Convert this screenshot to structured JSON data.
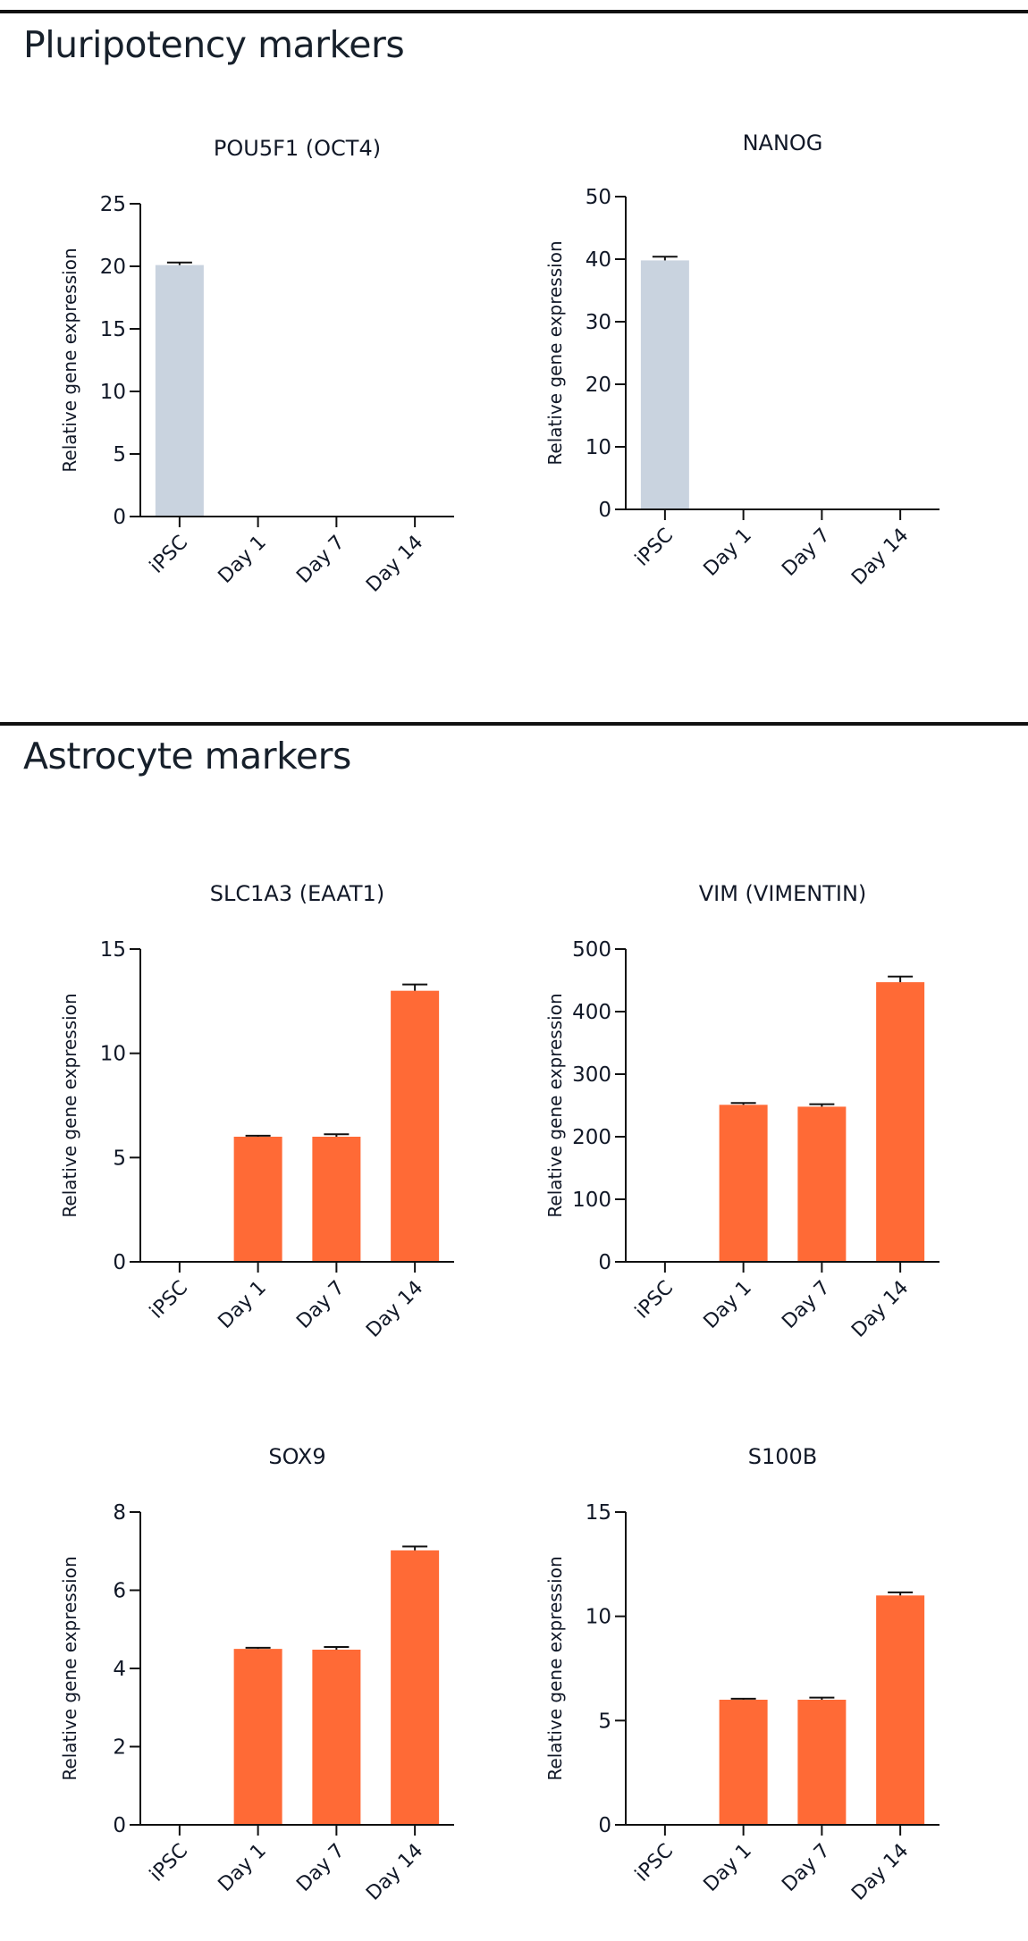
{
  "sections": [
    {
      "title": "Pluripotency markers"
    },
    {
      "title": "Astrocyte markers"
    }
  ],
  "colors": {
    "pluripotency_bar": "#c9d3df",
    "astrocyte_bar": "#ff6a36",
    "axis": "#111111",
    "text": "#111827"
  },
  "chart_data": [
    {
      "type": "bar",
      "title": "POU5F1 (OCT4)",
      "xlabel": "",
      "ylabel": "Relative gene expression",
      "categories": [
        "iPSC",
        "Day 1",
        "Day 7",
        "Day 14"
      ],
      "values": [
        20.1,
        0,
        0,
        0
      ],
      "errors": [
        0.2,
        0,
        0,
        0
      ],
      "ylim": [
        0,
        25
      ],
      "yticks": [
        "0",
        "5",
        "10",
        "15",
        "20",
        "25"
      ],
      "color": "#c9d3df",
      "grid": false
    },
    {
      "type": "bar",
      "title": "NANOG",
      "xlabel": "",
      "ylabel": "Relative gene expression",
      "categories": [
        "iPSC",
        "Day 1",
        "Day 7",
        "Day 14"
      ],
      "values": [
        39.8,
        0,
        0,
        0
      ],
      "errors": [
        0.6,
        0,
        0,
        0
      ],
      "ylim": [
        0,
        50
      ],
      "yticks": [
        "0",
        "10",
        "20",
        "30",
        "40",
        "50"
      ],
      "color": "#c9d3df",
      "grid": false
    },
    {
      "type": "bar",
      "title": "SLC1A3 (EAAT1)",
      "xlabel": "",
      "ylabel": "Relative gene expression",
      "categories": [
        "iPSC",
        "Day 1",
        "Day 7",
        "Day 14"
      ],
      "values": [
        0,
        6.0,
        6.0,
        13.0
      ],
      "errors": [
        0,
        0.05,
        0.12,
        0.3
      ],
      "ylim": [
        0,
        15
      ],
      "yticks": [
        "0",
        "5",
        "10",
        "15"
      ],
      "color": "#ff6a36",
      "grid": false
    },
    {
      "type": "bar",
      "title": "VIM (VIMENTIN)",
      "xlabel": "",
      "ylabel": "Relative gene expression",
      "categories": [
        "iPSC",
        "Day 1",
        "Day 7",
        "Day 14"
      ],
      "values": [
        0,
        251,
        248,
        447
      ],
      "errors": [
        0,
        3,
        4,
        9
      ],
      "ylim": [
        0,
        500
      ],
      "yticks": [
        "0",
        "100",
        "200",
        "300",
        "400",
        "500"
      ],
      "color": "#ff6a36",
      "grid": false
    },
    {
      "type": "bar",
      "title": "SOX9",
      "xlabel": "",
      "ylabel": "Relative gene expression",
      "categories": [
        "iPSC",
        "Day 1",
        "Day 7",
        "Day 14"
      ],
      "values": [
        0,
        4.5,
        4.48,
        7.02
      ],
      "errors": [
        0,
        0.03,
        0.07,
        0.1
      ],
      "ylim": [
        0,
        8
      ],
      "yticks": [
        "0",
        "2",
        "4",
        "6",
        "8"
      ],
      "color": "#ff6a36",
      "grid": false
    },
    {
      "type": "bar",
      "title": "S100B",
      "xlabel": "",
      "ylabel": "Relative gene expression",
      "categories": [
        "iPSC",
        "Day 1",
        "Day 7",
        "Day 14"
      ],
      "values": [
        0,
        6.0,
        6.0,
        11.0
      ],
      "errors": [
        0,
        0.05,
        0.1,
        0.15
      ],
      "ylim": [
        0,
        15
      ],
      "yticks": [
        "0",
        "5",
        "10",
        "15"
      ],
      "color": "#ff6a36",
      "grid": false
    }
  ]
}
